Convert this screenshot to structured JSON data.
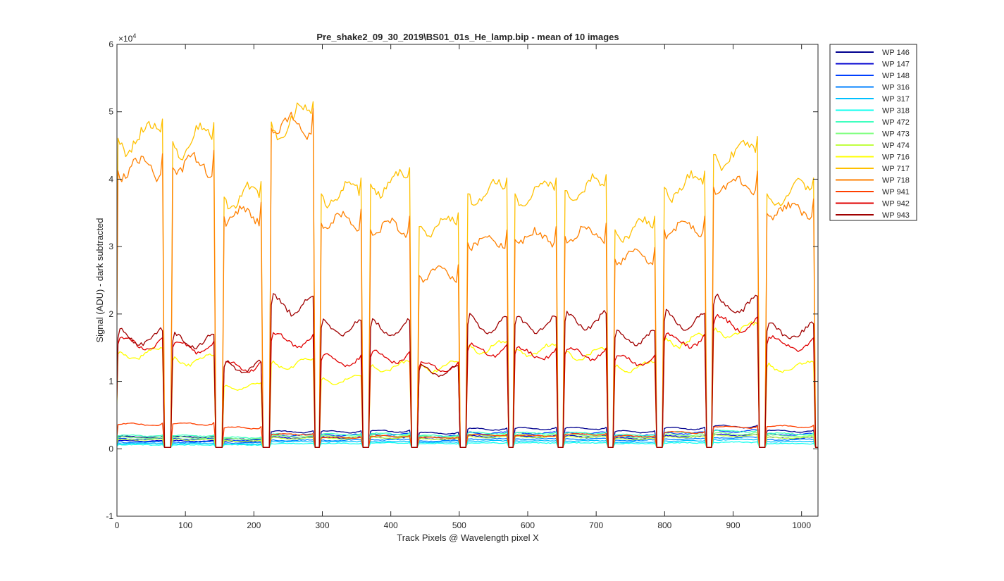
{
  "chart_data": {
    "type": "line",
    "title": "Pre_shake2_09_30_2019\\BS01_01s_He_lamp.bip - mean of 10 images",
    "xlabel": "Track Pixels @ Wavelength pixel X",
    "ylabel": "Signal (ADU) - dark subtracted",
    "exponent_label": "×10",
    "exponent_power": "4",
    "xlim": [
      0,
      1024
    ],
    "ylim": [
      -10000,
      60000
    ],
    "x_ticks": [
      0,
      100,
      200,
      300,
      400,
      500,
      600,
      700,
      800,
      900,
      1000
    ],
    "x_tick_labels": [
      "0",
      "100",
      "200",
      "300",
      "400",
      "500",
      "600",
      "700",
      "800",
      "900",
      "1000"
    ],
    "y_ticks": [
      -10000,
      0,
      10000,
      20000,
      30000,
      40000,
      50000,
      60000
    ],
    "y_tick_labels": [
      "-1",
      "0",
      "1",
      "2",
      "3",
      "4",
      "5",
      "6"
    ],
    "grid": false,
    "legend_position": "outside-top-right",
    "segments": [
      {
        "start": 0,
        "end": 68
      },
      {
        "start": 80,
        "end": 143
      },
      {
        "start": 155,
        "end": 212
      },
      {
        "start": 224,
        "end": 288
      },
      {
        "start": 297,
        "end": 358
      },
      {
        "start": 369,
        "end": 429
      },
      {
        "start": 440,
        "end": 500
      },
      {
        "start": 511,
        "end": 571
      },
      {
        "start": 580,
        "end": 643
      },
      {
        "start": 653,
        "end": 716
      },
      {
        "start": 726,
        "end": 787
      },
      {
        "start": 798,
        "end": 860
      },
      {
        "start": 870,
        "end": 937
      },
      {
        "start": 948,
        "end": 1019
      }
    ],
    "series": [
      {
        "name": "WP 146",
        "color": "#00008f",
        "levels": [
          1800,
          1800,
          1500,
          2600,
          2600,
          2700,
          2400,
          3000,
          3100,
          3100,
          2600,
          3100,
          3400,
          2700
        ]
      },
      {
        "name": "WP 147",
        "color": "#0000d0",
        "levels": [
          1200,
          1200,
          1100,
          1700,
          1700,
          1700,
          1500,
          1900,
          1900,
          1900,
          1600,
          1900,
          2100,
          1700
        ]
      },
      {
        "name": "WP 148",
        "color": "#0040ff",
        "levels": [
          1500,
          1500,
          1300,
          2100,
          2100,
          2200,
          1900,
          2400,
          2400,
          2400,
          2000,
          2400,
          2700,
          2200
        ]
      },
      {
        "name": "WP 316",
        "color": "#0080ff",
        "levels": [
          1000,
          1000,
          900,
          1300,
          1300,
          1400,
          1200,
          1500,
          1500,
          1500,
          1300,
          1500,
          1700,
          1400
        ]
      },
      {
        "name": "WP 317",
        "color": "#00c0ff",
        "levels": [
          800,
          800,
          700,
          1100,
          1100,
          1100,
          1000,
          1200,
          1200,
          1200,
          1000,
          1200,
          1400,
          1100
        ]
      },
      {
        "name": "WP 318",
        "color": "#10ffef",
        "levels": [
          600,
          600,
          600,
          800,
          800,
          900,
          800,
          900,
          900,
          900,
          800,
          900,
          1000,
          800
        ]
      },
      {
        "name": "WP 472",
        "color": "#40ffbf",
        "levels": [
          2000,
          2000,
          1700,
          2200,
          2200,
          2300,
          2000,
          2400,
          2400,
          2400,
          2100,
          2500,
          2700,
          2300
        ]
      },
      {
        "name": "WP 473",
        "color": "#80ff80",
        "levels": [
          1700,
          1700,
          1500,
          1900,
          1900,
          2000,
          1800,
          2100,
          2100,
          2100,
          1800,
          2100,
          2300,
          2000
        ]
      },
      {
        "name": "WP 474",
        "color": "#c0ff40",
        "levels": [
          1400,
          1400,
          1200,
          1600,
          1600,
          1700,
          1500,
          1800,
          1800,
          1800,
          1500,
          1800,
          2000,
          1700
        ]
      },
      {
        "name": "WP 716",
        "color": "#ffff00",
        "levels": [
          14500,
          13500,
          9500,
          13000,
          10500,
          12500,
          12500,
          15500,
          15000,
          14500,
          12500,
          16500,
          18000,
          12500
        ]
      },
      {
        "name": "WP 717",
        "color": "#ffc000",
        "levels": [
          47500,
          47000,
          38500,
          50000,
          39000,
          40500,
          34000,
          39000,
          39000,
          39500,
          33500,
          40000,
          45000,
          39000
        ]
      },
      {
        "name": "WP 718",
        "color": "#ff8000",
        "levels": [
          42500,
          43000,
          35500,
          49000,
          34500,
          33500,
          26500,
          31500,
          32000,
          32500,
          29000,
          33500,
          40000,
          36000
        ]
      },
      {
        "name": "WP 941",
        "color": "#ff4000",
        "levels": [
          3700,
          3800,
          3200,
          2200,
          1700,
          1900,
          1700,
          2100,
          2000,
          2200,
          1900,
          2500,
          3300,
          3400
        ]
      },
      {
        "name": "WP 942",
        "color": "#e00000",
        "levels": [
          16000,
          15500,
          12500,
          16500,
          13500,
          14000,
          12500,
          15000,
          14500,
          14500,
          13500,
          16500,
          19000,
          16000
        ]
      },
      {
        "name": "WP 943",
        "color": "#a00000",
        "levels": [
          17000,
          16500,
          12500,
          22000,
          18500,
          18500,
          12000,
          19000,
          19000,
          19500,
          17000,
          19500,
          22000,
          18000
        ]
      }
    ]
  }
}
